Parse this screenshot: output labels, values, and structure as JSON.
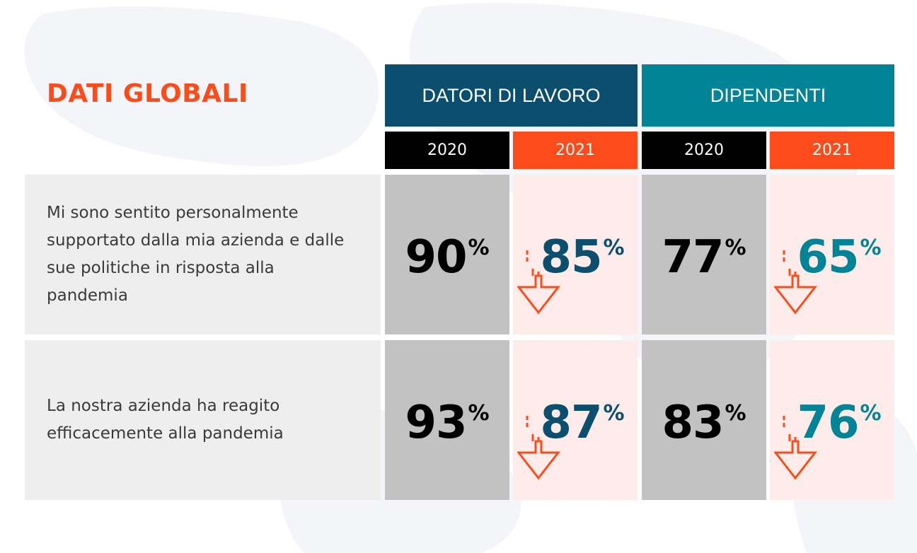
{
  "title": "DATI GLOBALI",
  "groups": [
    {
      "label": "DATORI DI LAVORO",
      "color": "#0b4e6e"
    },
    {
      "label": "DIPENDENTI",
      "color": "#008496"
    }
  ],
  "years": [
    {
      "label": "2020",
      "color": "#000000"
    },
    {
      "label": "2021",
      "color": "#fc4c1c"
    },
    {
      "label": "2020",
      "color": "#000000"
    },
    {
      "label": "2021",
      "color": "#fc4c1c"
    }
  ],
  "rows": [
    {
      "label": "Mi sono sentito personalmente supportato dalla mia azienda e dalle sue politiche in risposta alla pandemia",
      "values": [
        "90",
        "85",
        "77",
        "65"
      ]
    },
    {
      "label": "La nostra azienda ha reagito efficacemente alla pandemia",
      "values": [
        "93",
        "87",
        "83",
        "76"
      ]
    }
  ],
  "percent_sign": "%",
  "colors": {
    "accent": "#fc4c1c",
    "employers": "#0b4e6e",
    "employees": "#008496",
    "cell_2020_bg": "#c2c2c2",
    "cell_2021_bg": "#fdecea",
    "label_bg": "#eeeeee"
  },
  "chart_data": {
    "type": "table",
    "title": "DATI GLOBALI",
    "column_groups": [
      "DATORI DI LAVORO",
      "DIPENDENTI"
    ],
    "columns": [
      "2020",
      "2021",
      "2020",
      "2021"
    ],
    "rows": [
      {
        "label": "Mi sono sentito personalmente supportato dalla mia azienda e dalle sue politiche in risposta alla pandemia",
        "values": [
          90,
          85,
          77,
          65
        ]
      },
      {
        "label": "La nostra azienda ha reagito efficacemente alla pandemia",
        "values": [
          93,
          87,
          83,
          76
        ]
      }
    ],
    "unit": "%"
  }
}
